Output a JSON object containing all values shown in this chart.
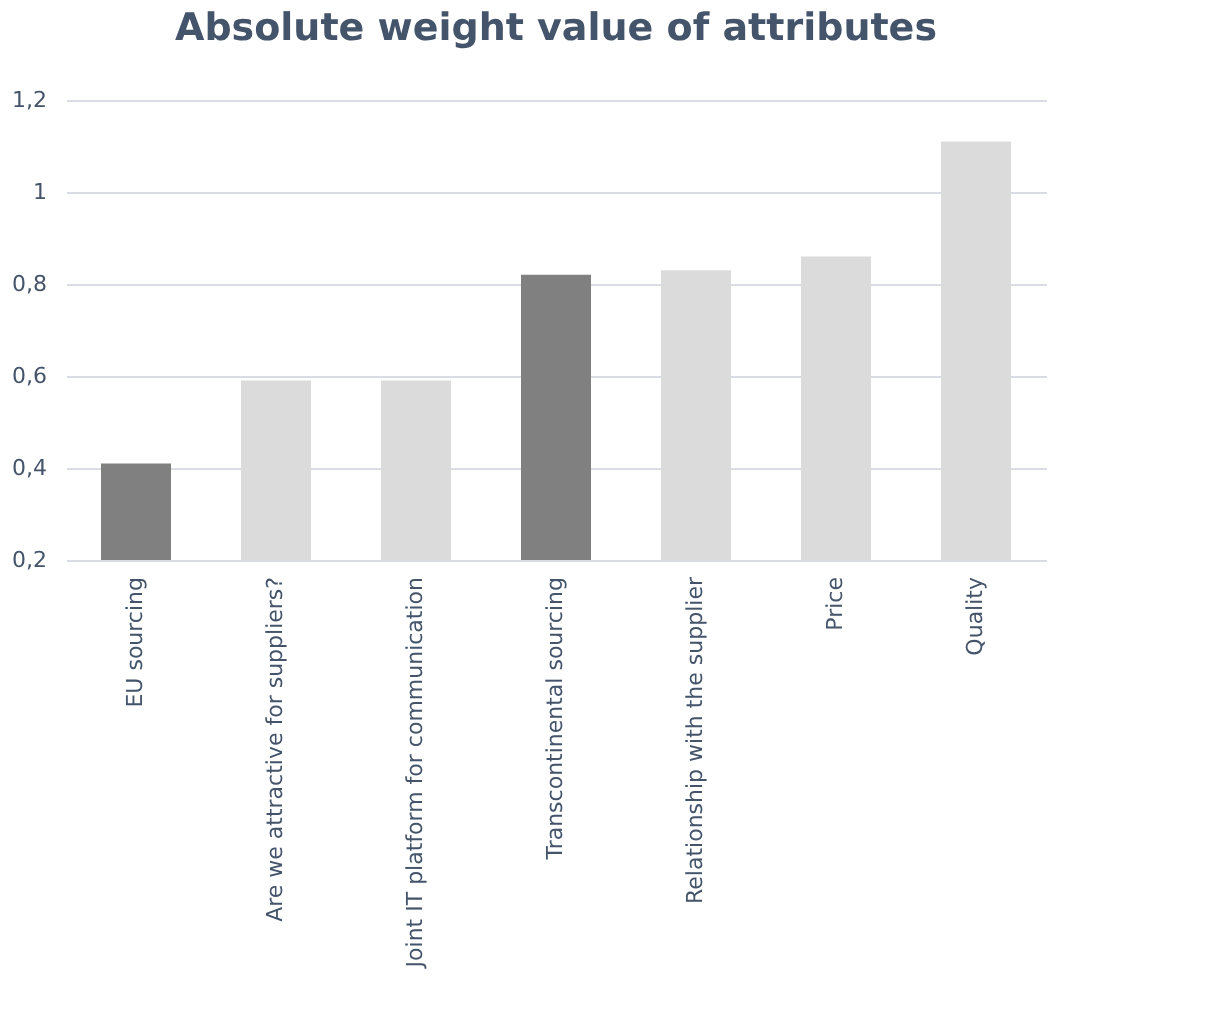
{
  "chart_data": {
    "type": "bar",
    "title": "Absolute weight value of attributes",
    "categories": [
      "EU sourcing",
      "Are we attractive for suppliers?",
      "Joint IT platform for communication",
      "Transcontinental sourcing",
      "Relationship with the supplier",
      "Price",
      "Quality"
    ],
    "values": [
      0.41,
      0.59,
      0.59,
      0.82,
      0.83,
      0.86,
      1.11
    ],
    "colors": [
      "#808080",
      "#dbdbdb",
      "#dbdbdb",
      "#808080",
      "#dbdbdb",
      "#dbdbdb",
      "#dbdbdb"
    ],
    "ylim": [
      0.2,
      1.2
    ],
    "yticks": [
      {
        "value": 0.2,
        "label": "0,2"
      },
      {
        "value": 0.4,
        "label": "0,4"
      },
      {
        "value": 0.6,
        "label": "0,6"
      },
      {
        "value": 0.8,
        "label": "0,8"
      },
      1,
      {
        "value": 1.2,
        "label": "1,2"
      }
    ],
    "grid": "y"
  }
}
